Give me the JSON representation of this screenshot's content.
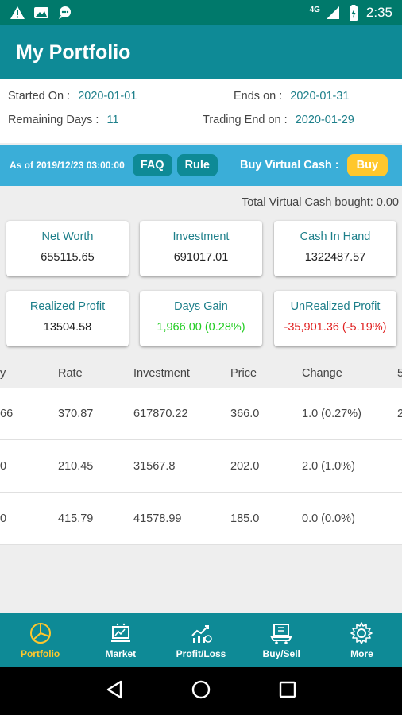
{
  "status_bar": {
    "time": "2:35",
    "network": "4G",
    "icons": [
      "warning-icon",
      "image-icon",
      "message-icon",
      "signal-icon",
      "battery-icon"
    ]
  },
  "app_bar": {
    "title": "My Portfolio"
  },
  "info": {
    "started_label": "Started On :",
    "started_value": "2020-01-01",
    "ends_label": "Ends on :",
    "ends_value": "2020-01-31",
    "remaining_label": "Remaining Days :",
    "remaining_value": "11",
    "trading_end_label": "Trading End on :",
    "trading_end_value": "2020-01-29"
  },
  "action_bar": {
    "as_of": "As of 2019/12/23 03:00:00",
    "faq_label": "FAQ",
    "rule_label": "Rule",
    "buy_virtual_cash_label": "Buy Virtual Cash :",
    "buy_label": "Buy"
  },
  "total_virtual_cash": "Total Virtual Cash bought: 0.00",
  "cards": {
    "net_worth": {
      "label": "Net Worth",
      "value": "655115.65"
    },
    "investment": {
      "label": "Investment",
      "value": "691017.01"
    },
    "cash_in_hand": {
      "label": "Cash In Hand",
      "value": "1322487.57"
    },
    "realized_profit": {
      "label": "Realized Profit",
      "value": "13504.58"
    },
    "days_gain": {
      "label": "Days Gain",
      "value": "1,966.00 (0.28%)"
    },
    "unrealized_profit": {
      "label": "UnRealized Profit",
      "value": "-35,901.36 (-5.19%)"
    }
  },
  "table": {
    "headers": {
      "qty": "y",
      "rate": "Rate",
      "investment": "Investment",
      "price": "Price",
      "change": "Change",
      "extra": "5"
    },
    "rows": [
      {
        "qty": "66",
        "rate": "370.87",
        "investment": "617870.22",
        "price": "366.0",
        "change": "1.0  (0.27%)",
        "extra": "2"
      },
      {
        "qty": "0",
        "rate": "210.45",
        "investment": "31567.8",
        "price": "202.0",
        "change": "2.0  (1.0%)",
        "extra": ""
      },
      {
        "qty": "0",
        "rate": "415.79",
        "investment": "41578.99",
        "price": "185.0",
        "change": "0.0  (0.0%)",
        "extra": ""
      }
    ]
  },
  "bottom_nav": {
    "portfolio": "Portfolio",
    "market": "Market",
    "profit_loss": "Profit/Loss",
    "buy_sell": "Buy/Sell",
    "more": "More"
  },
  "colors": {
    "primary": "#0e8a96",
    "status_bar": "#00796b",
    "accent": "#ffc72c",
    "info_blue": "#3aaed8",
    "gain": "#22cc22",
    "loss": "#e02020"
  }
}
